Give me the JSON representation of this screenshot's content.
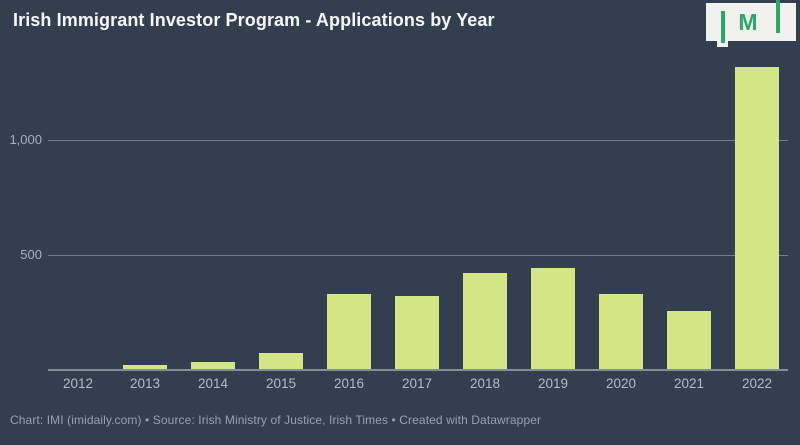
{
  "header": {
    "title": "Irish Immigrant Investor Program - Applications by Year",
    "logo": {
      "letter": "M"
    }
  },
  "chart_data": {
    "type": "bar",
    "title": "Irish Immigrant Investor Program - Applications by Year",
    "categories": [
      "2012",
      "2013",
      "2014",
      "2015",
      "2016",
      "2017",
      "2018",
      "2019",
      "2020",
      "2021",
      "2022"
    ],
    "values": [
      5,
      20,
      33,
      74,
      330,
      320,
      423,
      443,
      332,
      258,
      1316
    ],
    "xlabel": "",
    "ylabel": "",
    "ylim": [
      0,
      1350
    ],
    "yticks": [
      500,
      1000
    ],
    "ytick_labels": [
      "500",
      "1,000"
    ],
    "grid": true,
    "legend_position": "none",
    "bar_color": "#d3e584",
    "background_color": "#333e4e",
    "gridline_color": "#747d89",
    "logo_green": "#2fa666"
  },
  "footer": {
    "text": "Chart: IMI (imidaily.com) • Source: Irish Ministry of Justice, Irish Times • Created with Datawrapper"
  }
}
